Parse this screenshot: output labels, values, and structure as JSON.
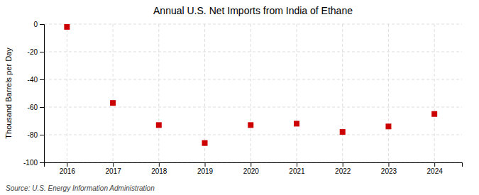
{
  "chart_data": {
    "type": "scatter",
    "title": "Annual U.S. Net Imports from India of Ethane",
    "ylabel": "Thousand Barrels per Day",
    "annotation": "Source: U.S. Energy Information Administration",
    "x": [
      2016,
      2017,
      2018,
      2019,
      2020,
      2021,
      2022,
      2023,
      2024
    ],
    "values": [
      -2,
      -57,
      -73,
      -86,
      -73,
      -72,
      -78,
      -74,
      -65
    ],
    "color": "#cc0000",
    "marker": "square",
    "xlim": [
      2015.5,
      2024.6
    ],
    "xticks": [
      2016,
      2017,
      2018,
      2019,
      2020,
      2021,
      2022,
      2023,
      2024
    ],
    "ylim": [
      -100,
      0
    ],
    "yticks": [
      0,
      -20,
      -40,
      -60,
      -80,
      -100
    ],
    "grid": true
  }
}
